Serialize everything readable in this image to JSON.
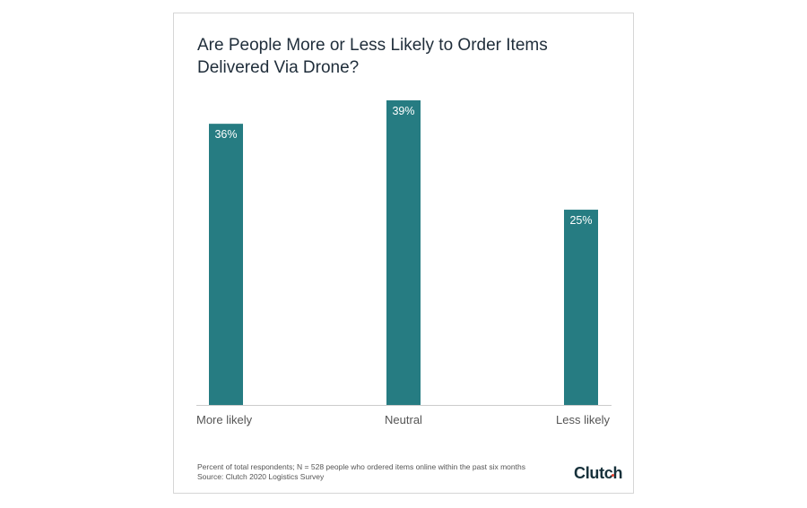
{
  "chart_data": {
    "type": "bar",
    "title": "Are People More or Less Likely to Order Items Delivered Via Drone?",
    "categories": [
      "More likely",
      "Neutral",
      "Less likely"
    ],
    "values": [
      36,
      39,
      25
    ],
    "data_labels": [
      "36%",
      "39%",
      "25%"
    ],
    "unit": "%",
    "ylim": [
      0,
      39
    ],
    "grid": false,
    "color": "#267c82"
  },
  "footnote": {
    "note": "Percent of total respondents; N = 528 people who ordered items online within the past six months",
    "source": "Source: Clutch 2020 Logistics Survey"
  },
  "logo": "Clutch"
}
